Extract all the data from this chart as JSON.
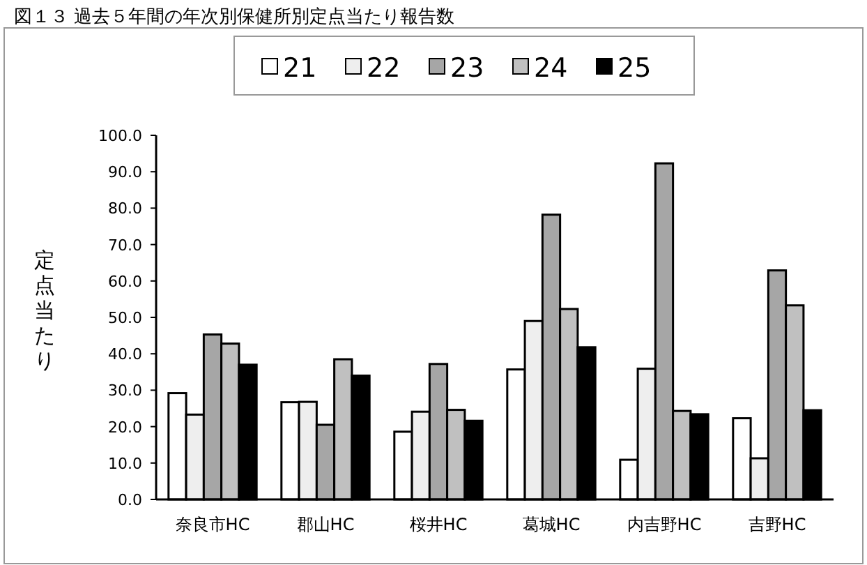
{
  "chart_data": {
    "type": "bar",
    "title": "図１３ 過去５年間の年次別保健所別定点当たり報告数",
    "ylabel": "定点当たり",
    "categories": [
      "奈良市HC",
      "郡山HC",
      "桜井HC",
      "葛城HC",
      "内吉野HC",
      "吉野HC"
    ],
    "series": [
      {
        "name": "21",
        "color": "#ffffff",
        "values": [
          29.2,
          26.7,
          18.6,
          35.7,
          10.9,
          22.3
        ]
      },
      {
        "name": "22",
        "color": "#eeeeee",
        "values": [
          23.3,
          26.8,
          24.1,
          49.0,
          35.9,
          11.3
        ]
      },
      {
        "name": "23",
        "color": "#a6a6a6",
        "values": [
          45.3,
          20.5,
          37.2,
          78.2,
          92.3,
          62.9
        ]
      },
      {
        "name": "24",
        "color": "#c0c0c0",
        "values": [
          42.8,
          38.5,
          24.6,
          52.3,
          24.3,
          53.3
        ]
      },
      {
        "name": "25",
        "color": "#000000",
        "values": [
          37.0,
          34.0,
          21.6,
          41.8,
          23.4,
          24.5
        ]
      }
    ],
    "ylim": [
      0,
      100
    ],
    "yticks": [
      {
        "value": 0,
        "label": "0.0"
      },
      {
        "value": 10,
        "label": "10.0"
      },
      {
        "value": 20,
        "label": "20.0"
      },
      {
        "value": 30,
        "label": "30.0"
      },
      {
        "value": 40,
        "label": "40.0"
      },
      {
        "value": 50,
        "label": "50.0"
      },
      {
        "value": 60,
        "label": "60.0"
      },
      {
        "value": 70,
        "label": "70.0"
      },
      {
        "value": 80,
        "label": "80.0"
      },
      {
        "value": 90,
        "label": "90.0"
      },
      {
        "value": 100,
        "label": "100.0"
      }
    ],
    "grid": false,
    "legend": "top"
  }
}
